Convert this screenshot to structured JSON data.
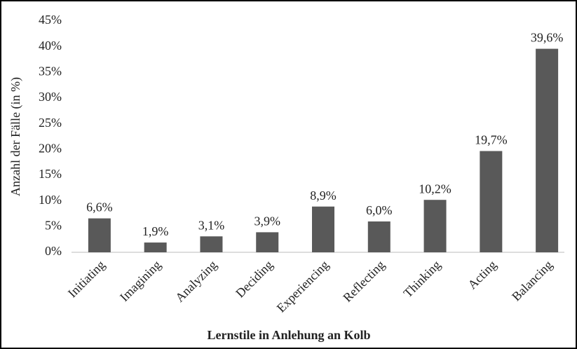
{
  "chart_data": {
    "type": "bar",
    "x_label": "Lernstile in Anlehung an Kolb",
    "y_label": "Anzahl der Fälle (in %)",
    "categories": [
      "Initiating",
      "Imagining",
      "Analyzing",
      "Deciding",
      "Experiencing",
      "Reflecting",
      "Thinking",
      "Acting",
      "Balancing"
    ],
    "values": [
      6.6,
      1.9,
      3.1,
      3.9,
      8.9,
      6.0,
      10.2,
      19.7,
      39.6
    ],
    "value_labels": [
      "6,6%",
      "1,9%",
      "3,1%",
      "3,9%",
      "8,9%",
      "6,0%",
      "10,2%",
      "19,7%",
      "39,6%"
    ],
    "color": "#595959",
    "ylim": [
      0,
      45
    ],
    "yticks": [
      {
        "value": 0,
        "label": "0%"
      },
      {
        "value": 5,
        "label": "5%"
      },
      {
        "value": 10,
        "label": "10%"
      },
      {
        "value": 15,
        "label": "15%"
      },
      {
        "value": 20,
        "label": "20%"
      },
      {
        "value": 25,
        "label": "25%"
      },
      {
        "value": 30,
        "label": "30%"
      },
      {
        "value": 35,
        "label": "35%"
      },
      {
        "value": 40,
        "label": "40%"
      },
      {
        "value": 45,
        "label": "45%"
      }
    ],
    "grid": false
  }
}
